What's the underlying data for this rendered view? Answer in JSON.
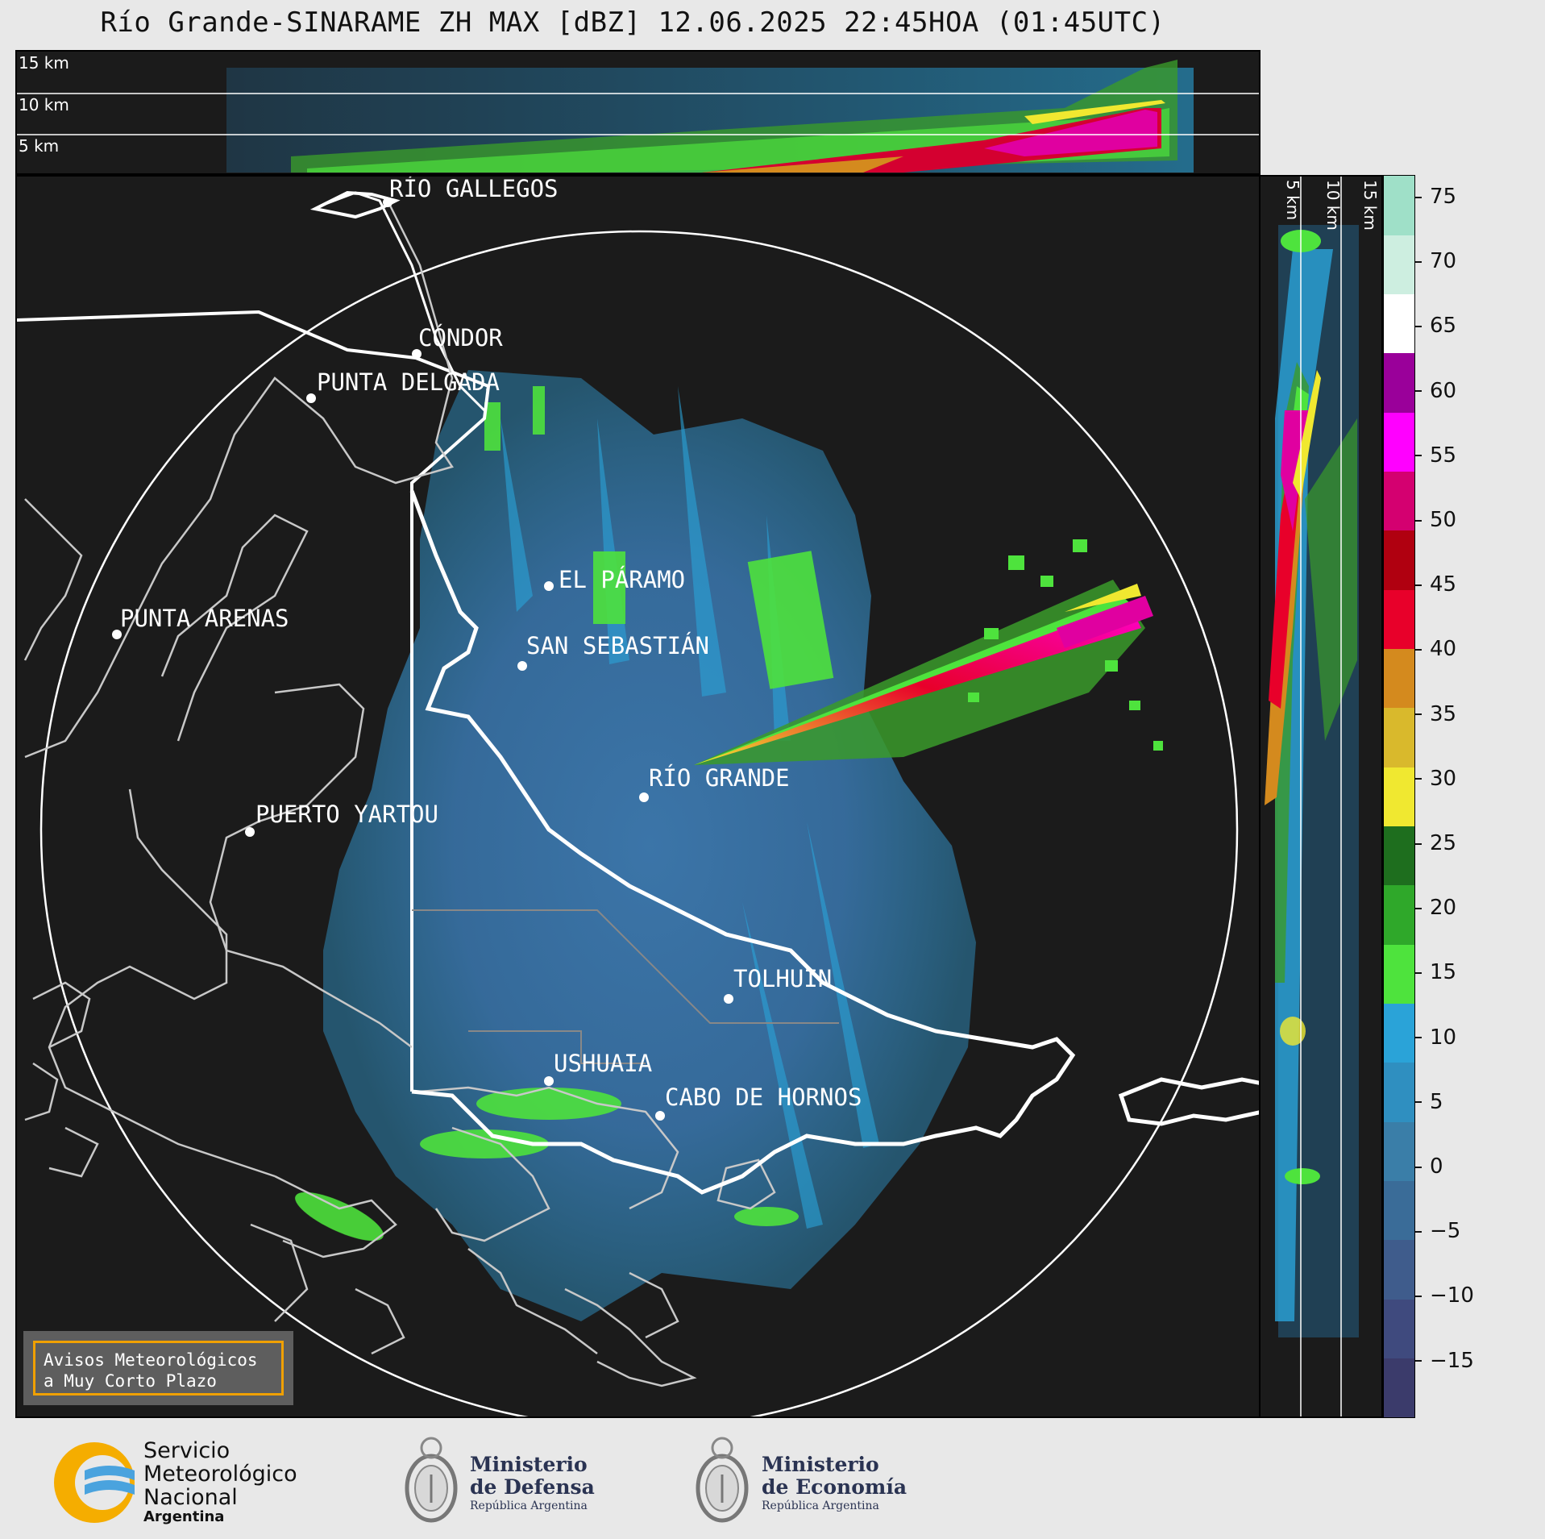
{
  "title": "Río Grande-SINARAME ZH MAX [dBZ] 12.06.2025 22:45HOA (01:45UTC)",
  "top_panel": {
    "altitude_labels": [
      "15 km",
      "10 km",
      "5 km"
    ]
  },
  "right_panel": {
    "altitude_labels": [
      "5 km",
      "10 km",
      "15 km"
    ]
  },
  "colorbar": {
    "unit": "dBZ",
    "ticks": [
      "75",
      "70",
      "65",
      "60",
      "55",
      "50",
      "45",
      "40",
      "35",
      "30",
      "25",
      "20",
      "15",
      "10",
      "5",
      "0",
      "−5",
      "−10",
      "−15"
    ],
    "colors": [
      "#3b3b6b",
      "#3f4a7e",
      "#3f5c8c",
      "#3a6c98",
      "#3a7ea8",
      "#2f8fc0",
      "#2aa3d8",
      "#4ee33d",
      "#2fa82a",
      "#1e6e1e",
      "#f0e830",
      "#d9b92c",
      "#d48a1e",
      "#e8002a",
      "#b00010",
      "#d40070",
      "#ff00ff",
      "#9a009a",
      "#ffffff",
      "#cdeee0",
      "#9fe0c8"
    ]
  },
  "cities": [
    {
      "name": "RÍO GALLEGOS"
    },
    {
      "name": "CÓNDOR"
    },
    {
      "name": "PUNTA DELGADA"
    },
    {
      "name": "EL PÁRAMO"
    },
    {
      "name": "PUNTA ARENAS"
    },
    {
      "name": "SAN SEBASTIÁN"
    },
    {
      "name": "RÍO GRANDE"
    },
    {
      "name": "PUERTO YARTOU"
    },
    {
      "name": "TOLHUIN"
    },
    {
      "name": "USHUAIA"
    },
    {
      "name": "CABO DE HORNOS"
    }
  ],
  "avisos": {
    "line1": "Avisos Meteorológicos",
    "line2": "a Muy Corto Plazo"
  },
  "footer": {
    "smn": {
      "line1": "Servicio",
      "line2": "Meteorológico",
      "line3": "Nacional",
      "line4": "Argentina"
    },
    "defensa": {
      "line1": "Ministerio",
      "line2": "de Defensa",
      "line3": "República Argentina"
    },
    "economia": {
      "line1": "Ministerio",
      "line2": "de Economía",
      "line3": "República Argentina"
    }
  }
}
